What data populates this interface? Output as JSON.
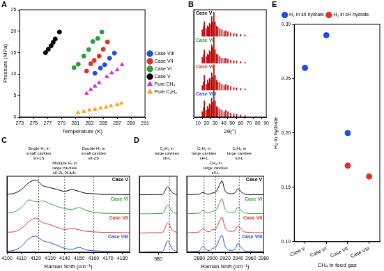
{
  "chart_data": [
    {
      "type": "scatter",
      "title": "A",
      "x_label": "Temperature (K)",
      "y_label": "Pressure (MPa)",
      "xlim": [
        273,
        291
      ],
      "xticks": [
        273,
        275,
        277,
        279,
        281,
        283,
        285,
        287,
        289,
        291
      ],
      "ylim": [
        0,
        25
      ],
      "yticks": [
        0,
        5,
        10,
        15,
        20,
        25
      ],
      "grid": false,
      "legend": "right",
      "series": [
        {
          "name": "Case VIII",
          "color": "#1f4fd6",
          "marker": "circle",
          "x": [
            283.8,
            284.6,
            285.2,
            285.9,
            286.6
          ],
          "values": [
            10.2,
            11.4,
            12.2,
            13.7,
            14.9
          ]
        },
        {
          "name": "Case VII",
          "color": "#e0322b",
          "marker": "circle",
          "x": [
            282.6,
            283.2,
            283.7,
            284.4,
            285.0,
            285.6
          ],
          "values": [
            10.7,
            12.4,
            13.2,
            14.2,
            15.8,
            17.5
          ]
        },
        {
          "name": "Case VI",
          "color": "#2e9e3a",
          "marker": "circle",
          "x": [
            280.8,
            281.4,
            282.2,
            282.9,
            283.5,
            284.2,
            284.8
          ],
          "values": [
            11.5,
            12.3,
            14.2,
            15.7,
            17.6,
            18.3,
            19.8
          ]
        },
        {
          "name": "Case V",
          "color": "#000000",
          "marker": "circle",
          "x": [
            276.7,
            277.1,
            277.5,
            277.8,
            278.1,
            278.7
          ],
          "values": [
            15.0,
            15.8,
            16.6,
            17.4,
            18.2,
            19.8
          ]
        },
        {
          "name": "Pure CH₄",
          "color": "#d22fd6",
          "marker": "triangle",
          "x": [
            282.6,
            283.2,
            283.8,
            284.4,
            285.5,
            286.2,
            287.0,
            287.7
          ],
          "values": [
            5.5,
            6.4,
            7.2,
            8.0,
            9.4,
            10.3,
            11.0,
            12.2
          ]
        },
        {
          "name": "Pure C₂H₆",
          "color": "#f5a623",
          "marker": "triangle",
          "x": [
            281.4,
            282.2,
            283.0,
            283.8,
            284.6,
            285.4,
            286.1,
            287.0,
            287.6
          ],
          "values": [
            1.0,
            1.3,
            1.6,
            1.8,
            2.1,
            2.3,
            2.6,
            2.9,
            3.2
          ]
        }
      ]
    },
    {
      "type": "bar",
      "title": "B",
      "x_label": "2θ(°)",
      "xlim": [
        5,
        90
      ],
      "xticks": [
        10,
        20,
        30,
        40,
        50,
        60,
        70,
        80,
        90
      ],
      "ylim": [
        0,
        100
      ],
      "tick_labels": "x",
      "grid": false,
      "color": "#c00000",
      "x": [
        15.0,
        16.6,
        17.4,
        19.6,
        21.2,
        22.4,
        23.4,
        25.2,
        26.0,
        27.0,
        28.6,
        30.0,
        31.6,
        33.2,
        35.6,
        38.0,
        40.6,
        42.6,
        45.0,
        48.4,
        52.0,
        55.2,
        60.0,
        65.0
      ],
      "series": [
        {
          "name": "Case VIII",
          "color": "#1f4fd6",
          "values": [
            20,
            35,
            60,
            25,
            40,
            30,
            50,
            45,
            70,
            55,
            100,
            60,
            40,
            35,
            30,
            25,
            20,
            25,
            20,
            15,
            12,
            10,
            8,
            6
          ]
        },
        {
          "name": "Case VII",
          "color": "#e0322b",
          "values": [
            18,
            30,
            55,
            22,
            38,
            28,
            45,
            40,
            65,
            50,
            95,
            55,
            38,
            30,
            28,
            22,
            18,
            22,
            18,
            14,
            10,
            9,
            7,
            5
          ]
        },
        {
          "name": "Case VI",
          "color": "#2e9e3a",
          "values": [
            22,
            32,
            50,
            25,
            35,
            30,
            48,
            42,
            70,
            60,
            100,
            50,
            35,
            32,
            25,
            20,
            18,
            20,
            15,
            12,
            10,
            8,
            7,
            5
          ]
        },
        {
          "name": "Case V",
          "color": "#000000",
          "values": [
            25,
            38,
            55,
            30,
            40,
            35,
            50,
            45,
            75,
            55,
            90,
            55,
            40,
            35,
            30,
            25,
            20,
            22,
            18,
            14,
            12,
            10,
            8,
            6
          ]
        }
      ]
    },
    {
      "type": "line",
      "title": "C",
      "x_label": "Raman Shift (cm⁻¹)",
      "xlim": [
        4100,
        4185
      ],
      "xticks": [
        4100,
        4110,
        4120,
        4130,
        4140,
        4150,
        4160,
        4170,
        4180
      ],
      "ylim": [
        0,
        100
      ],
      "tick_labels": "x",
      "grid": false,
      "x": [
        4100,
        4105,
        4110,
        4115,
        4120,
        4125,
        4130,
        4135,
        4140,
        4145,
        4150,
        4155,
        4160,
        4165,
        4170,
        4175,
        4180,
        4185
      ],
      "series": [
        {
          "name": "Case VIII",
          "color": "#1f4fd6",
          "values": [
            5,
            10,
            30,
            70,
            85,
            60,
            50,
            35,
            20,
            15,
            25,
            12,
            8,
            6,
            5,
            4,
            4,
            3
          ]
        },
        {
          "name": "Case VII",
          "color": "#e0322b",
          "values": [
            5,
            8,
            25,
            60,
            80,
            55,
            45,
            30,
            20,
            25,
            18,
            10,
            7,
            5,
            4,
            4,
            3,
            3
          ]
        },
        {
          "name": "Case VI",
          "color": "#2e9e3a",
          "values": [
            6,
            12,
            35,
            75,
            65,
            70,
            55,
            40,
            30,
            25,
            35,
            20,
            10,
            6,
            5,
            4,
            3,
            3
          ]
        },
        {
          "name": "Case V",
          "color": "#000000",
          "values": [
            5,
            10,
            30,
            65,
            80,
            50,
            40,
            30,
            20,
            30,
            20,
            10,
            8,
            5,
            4,
            4,
            3,
            3
          ]
        }
      ],
      "annotations": [
        {
          "text": [
            "Single H₂ in",
            "small cavities",
            "sII-1S"
          ],
          "x": 4122
        },
        {
          "text": [
            "Multiple H₂ in",
            "large cavities",
            "sII-2L,3L&4L"
          ],
          "x": 4140
        },
        {
          "text": [
            "Double H₂ in",
            "small cavities",
            "sII-2S"
          ],
          "x": 4160
        }
      ]
    },
    {
      "type": "line",
      "title": "D",
      "xlim": [
        960,
        1000
      ],
      "xticks": [
        980
      ],
      "ylim": [
        0,
        100
      ],
      "tick_labels": "x",
      "grid": false,
      "x": [
        960,
        965,
        970,
        975,
        980,
        985,
        990,
        995,
        1000
      ],
      "series": [
        {
          "color": "#1f4fd6",
          "values": [
            3,
            3,
            4,
            4,
            5,
            8,
            60,
            20,
            4
          ]
        },
        {
          "color": "#e0322b",
          "values": [
            3,
            3,
            4,
            4,
            5,
            7,
            55,
            18,
            4
          ]
        },
        {
          "color": "#2e9e3a",
          "values": [
            3,
            3,
            3,
            4,
            5,
            7,
            50,
            16,
            4
          ]
        },
        {
          "color": "#000000",
          "values": [
            3,
            3,
            3,
            4,
            4,
            6,
            45,
            14,
            3
          ]
        }
      ],
      "annotations": [
        {
          "text": [
            "C₂H₆ in",
            "large cavities",
            "sII-L"
          ],
          "x": 992
        }
      ]
    },
    {
      "type": "line",
      "x_label": "Raman Shift (cm⁻¹)",
      "xlim": [
        2860,
        2980
      ],
      "xticks": [
        2880,
        2900,
        2920,
        2940,
        2960,
        2980
      ],
      "ylim": [
        0,
        100
      ],
      "tick_labels": "x",
      "grid": false,
      "x": [
        2860,
        2865,
        2870,
        2875,
        2880,
        2885,
        2890,
        2895,
        2900,
        2905,
        2910,
        2915,
        2920,
        2925,
        2930,
        2935,
        2940,
        2945,
        2950,
        2955,
        2960,
        2965,
        2970,
        2975,
        2980
      ],
      "series": [
        {
          "name": "Case VIII",
          "color": "#1f4fd6",
          "values": [
            3,
            3,
            4,
            5,
            8,
            30,
            15,
            8,
            20,
            25,
            60,
            90,
            30,
            12,
            10,
            15,
            45,
            25,
            8,
            5,
            4,
            3,
            3,
            3,
            3
          ]
        },
        {
          "name": "Case VII",
          "color": "#e0322b",
          "values": [
            3,
            3,
            4,
            5,
            7,
            25,
            12,
            8,
            18,
            22,
            55,
            85,
            28,
            12,
            10,
            14,
            40,
            22,
            7,
            5,
            4,
            3,
            3,
            3,
            3
          ]
        },
        {
          "name": "Case VI",
          "color": "#2e9e3a",
          "values": [
            3,
            3,
            4,
            5,
            6,
            20,
            10,
            7,
            15,
            20,
            50,
            80,
            25,
            10,
            9,
            12,
            38,
            20,
            7,
            5,
            4,
            3,
            3,
            3,
            3
          ]
        },
        {
          "name": "Case V",
          "color": "#000000",
          "values": [
            3,
            3,
            4,
            5,
            6,
            15,
            8,
            6,
            12,
            15,
            45,
            75,
            22,
            10,
            8,
            12,
            35,
            18,
            6,
            4,
            3,
            3,
            3,
            3,
            3
          ]
        }
      ],
      "annotations": [
        {
          "text": [
            "C₂H₆ in",
            "large cavities",
            "sH-L"
          ],
          "x": 2887
        },
        {
          "text": [
            "CH₄ in",
            "large cavities",
            "sII-L"
          ],
          "x": 2905
        },
        {
          "text": [
            "C₂H₆ in",
            "large cavities",
            "sII-L"
          ],
          "x": 2942
        }
      ]
    },
    {
      "type": "scatter",
      "title": "E",
      "x_label": "CH₄ in feed gas",
      "y_label": "H₂ in hydrate",
      "categories": [
        "Case V",
        "Case VI",
        "Case VII",
        "Case VIII"
      ],
      "ylim": [
        0.1,
        0.3
      ],
      "yticks": [
        {
          "value": 0.1,
          "label": "0.10"
        },
        {
          "value": 0.15,
          "label": "0.15"
        },
        {
          "value": 0.2,
          "label": "0.20"
        },
        {
          "value": 0.25,
          "label": "0.25"
        },
        {
          "value": 0.3,
          "label": "0.30"
        }
      ],
      "grid": false,
      "legend": "top",
      "series": [
        {
          "name": "H₂ in sII hydrate",
          "color": "#1f4fd6",
          "marker": "circle",
          "values": [
            0.26,
            0.29,
            0.2,
            null
          ]
        },
        {
          "name": "H₂ in sH hydrate",
          "color": "#e0322b",
          "marker": "circle",
          "values": [
            null,
            null,
            0.17,
            0.16
          ]
        }
      ]
    }
  ]
}
